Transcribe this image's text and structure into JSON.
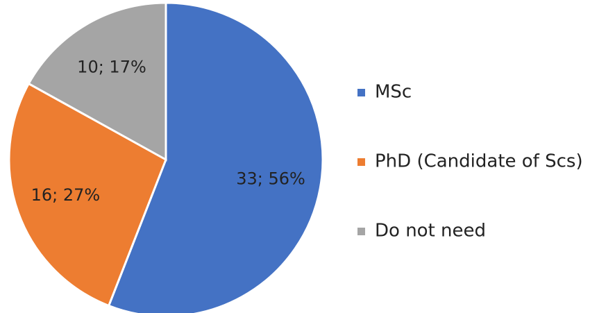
{
  "chart_data": {
    "type": "pie",
    "categories": [
      "MSc",
      "PhD (Candidate of Scs)",
      "Do not need"
    ],
    "values": [
      33,
      16,
      10
    ],
    "value_labels": [
      "33; 56%",
      "16; 27%",
      "10; 17%"
    ],
    "colors": [
      "#4472c4",
      "#ed7d31",
      "#a5a5a5"
    ],
    "legend": "right"
  }
}
